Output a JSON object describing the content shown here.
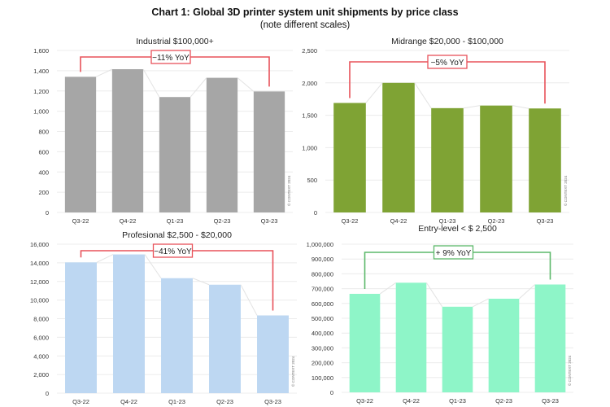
{
  "title": "Chart 1: Global 3D printer system unit shipments by price class",
  "subtitle": "(note different scales)",
  "watermark": "© CONTEXT 2024",
  "chart_data": [
    {
      "type": "bar",
      "title": "Industrial $100,000+",
      "categories": [
        "Q3-22",
        "Q4-22",
        "Q1-23",
        "Q2-23",
        "Q3-23"
      ],
      "values": [
        1340,
        1415,
        1140,
        1330,
        1195
      ],
      "ylim": [
        0,
        1600
      ],
      "yticks": [
        "0",
        "200",
        "400",
        "600",
        "800",
        "1,000",
        "1,200",
        "1,400",
        "1,600"
      ],
      "annotation": "−11% YoY",
      "annotation_color": "#e8525a",
      "bar_color": "#a6a6a6",
      "grid": true
    },
    {
      "type": "bar",
      "title": "Midrange $20,000 - $100,000",
      "categories": [
        "Q3-22",
        "Q4-22",
        "Q1-23",
        "Q2-23",
        "Q3-23"
      ],
      "values": [
        1690,
        2000,
        1610,
        1650,
        1605
      ],
      "ylim": [
        0,
        2500
      ],
      "yticks": [
        "0",
        "500",
        "1,000",
        "1,500",
        "2,000",
        "2,500"
      ],
      "annotation": "−5% YoY",
      "annotation_color": "#e8525a",
      "bar_color": "#7fa334",
      "grid": true
    },
    {
      "type": "bar",
      "title": "Profesional $2,500 - $20,000",
      "categories": [
        "Q3-22",
        "Q4-22",
        "Q1-23",
        "Q2-23",
        "Q3-23"
      ],
      "values": [
        14050,
        14900,
        12350,
        11650,
        8350
      ],
      "ylim": [
        0,
        16000
      ],
      "yticks": [
        "0",
        "2,000",
        "4,000",
        "6,000",
        "8,000",
        "10,000",
        "12,000",
        "14,000",
        "16,000"
      ],
      "annotation": "−41% YoY",
      "annotation_color": "#e8525a",
      "bar_color": "#bdd7f2",
      "grid": true
    },
    {
      "type": "bar",
      "title": "Entry-level < $ 2,500",
      "categories": [
        "Q3-22",
        "Q4-22",
        "Q1-23",
        "Q2-23",
        "Q3-23"
      ],
      "values": [
        665000,
        740000,
        578000,
        632000,
        728000
      ],
      "ylim": [
        0,
        1000000
      ],
      "yticks": [
        "0",
        "100,000",
        "200,000",
        "300,000",
        "400,000",
        "500,000",
        "600,000",
        "700,000",
        "800,000",
        "900,000",
        "1,000,000"
      ],
      "annotation": "+ 9% YoY",
      "annotation_color": "#5cb86a",
      "bar_color": "#8ef5c8",
      "grid": true
    }
  ]
}
